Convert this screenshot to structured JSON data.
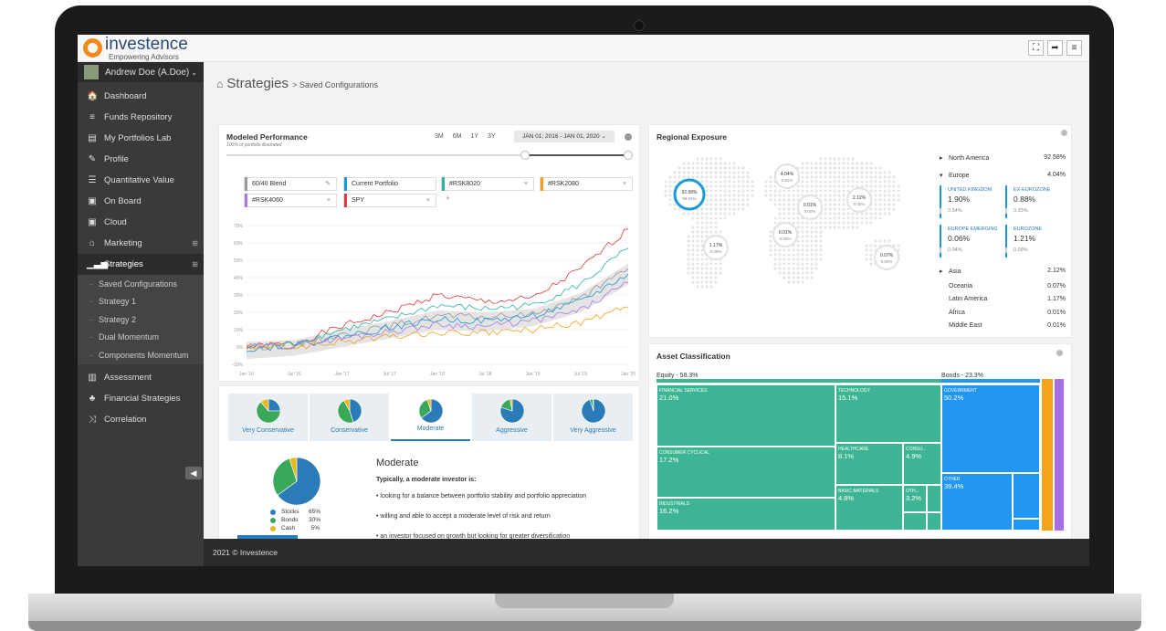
{
  "brand": {
    "name": "investence",
    "tagline": "Empowering Advisors"
  },
  "topbar": {
    "icons": [
      "fullscreen-icon",
      "logout-icon",
      "menu-icon"
    ],
    "glyphs": [
      "⛶",
      "➦",
      "≡"
    ]
  },
  "user": {
    "name": "Andrew Doe (A.Doe)"
  },
  "nav": [
    {
      "label": "Dashboard",
      "icon": "home-icon",
      "glyph": "🏠"
    },
    {
      "label": "Funds Repository",
      "icon": "database-icon",
      "glyph": "≡"
    },
    {
      "label": "My Portfolios Lab",
      "icon": "folder-icon",
      "glyph": "▤"
    },
    {
      "label": "Profile",
      "icon": "wand-icon",
      "glyph": "✎"
    },
    {
      "label": "Quantitative Value",
      "icon": "list-icon",
      "glyph": "☰"
    },
    {
      "label": "On Board",
      "icon": "briefcase-icon",
      "glyph": "▣"
    },
    {
      "label": "Cloud",
      "icon": "case-icon",
      "glyph": "▣"
    },
    {
      "label": "Marketing",
      "icon": "inbox-icon",
      "glyph": "⌂"
    },
    {
      "label": "Strategies",
      "icon": "bars-icon",
      "glyph": "▁▃▅"
    }
  ],
  "strategies_sub": [
    "Saved Configurations",
    "Strategy 1",
    "Strategy 2",
    "Dual Momentum",
    "Components Momentum"
  ],
  "nav2": [
    {
      "label": "Assessment",
      "icon": "chart-icon",
      "glyph": "▥"
    },
    {
      "label": "Financial Strategies",
      "icon": "sitemap-icon",
      "glyph": "♣"
    },
    {
      "label": "Correlation",
      "icon": "shuffle-icon",
      "glyph": "⤨"
    }
  ],
  "breadcrumb": {
    "title": "Strategies",
    "sub": "> Saved Configurations"
  },
  "performance": {
    "title": "Modeled Performance",
    "subtitle": "100% of portfolio illustrated",
    "ranges": [
      "3M",
      "6M",
      "1Y",
      "3Y"
    ],
    "date_range": "JAN 01, 2016 - JAN 01, 2020",
    "tags": [
      {
        "label": "60/40 Blend",
        "color": "#999999",
        "close": "✎"
      },
      {
        "label": "Current Portfolio",
        "color": "#1a9ad6",
        "close": ""
      },
      {
        "label": "#RSK8020",
        "color": "#2ab3a0",
        "close": "×"
      },
      {
        "label": "#RSK2080",
        "color": "#f2a01b",
        "close": "×"
      },
      {
        "label": "#RSK4060",
        "color": "#a97be0",
        "close": "×"
      },
      {
        "label": "SPY",
        "color": "#e0393e",
        "close": "×"
      }
    ],
    "add": "+"
  },
  "chart_data": {
    "type": "line",
    "x": [
      "Jan '16",
      "Jul '16",
      "Jan '17",
      "Jul '17",
      "Jan '18",
      "Jul '18",
      "Jan '19",
      "Jul '19",
      "Jan '20"
    ],
    "yticks": [
      "70%",
      "60%",
      "50%",
      "40%",
      "30%",
      "20%",
      "10%",
      "0%",
      "-10%"
    ],
    "ylim": [
      -10,
      70
    ],
    "series": [
      {
        "name": "SPY",
        "color": "#e0393e",
        "values": [
          0,
          2,
          12,
          20,
          30,
          26,
          28,
          45,
          68
        ]
      },
      {
        "name": "#RSK8020",
        "color": "#2ab3a0",
        "values": [
          0,
          2,
          10,
          16,
          24,
          22,
          24,
          36,
          57
        ]
      },
      {
        "name": "60/40 Blend",
        "color": "#999999",
        "values": [
          0,
          1,
          7,
          12,
          18,
          17,
          19,
          28,
          45
        ]
      },
      {
        "name": "Current Portfolio",
        "color": "#1a9ad6",
        "values": [
          -1,
          1,
          6,
          11,
          16,
          15,
          18,
          26,
          42
        ]
      },
      {
        "name": "#RSK4060",
        "color": "#a97be0",
        "values": [
          0,
          1,
          5,
          9,
          13,
          12,
          15,
          21,
          37
        ]
      },
      {
        "name": "#RSK2080",
        "color": "#f2a01b",
        "values": [
          0,
          0,
          3,
          6,
          8,
          8,
          10,
          14,
          23
        ]
      }
    ]
  },
  "profiles": {
    "tabs": [
      {
        "label": "Very Conservative",
        "stocks": 25
      },
      {
        "label": "Conservative",
        "stocks": 45
      },
      {
        "label": "Moderate",
        "stocks": 65
      },
      {
        "label": "Aggressive",
        "stocks": 80
      },
      {
        "label": "Very Aggressive",
        "stocks": 95
      }
    ],
    "selected": "Moderate",
    "heading": "Moderate",
    "intro": "Typically, a moderate investor is:",
    "bullets": [
      "looking for a balance between portfolio stability and portfolio appreciation",
      "willing and able to accept a moderate level of risk and return",
      "an investor focused on growth but looking for greater diversification"
    ],
    "legend": [
      {
        "label": "Stocks",
        "value": "65%",
        "color": "#2b7bb9"
      },
      {
        "label": "Bonds",
        "value": "30%",
        "color": "#3aa85a"
      },
      {
        "label": "Cash",
        "value": "5%",
        "color": "#e8b81a"
      }
    ]
  },
  "regional": {
    "title": "Regional Exposure",
    "bubbles": [
      "92.58%",
      "99.04%",
      "4.04%",
      "0.91%",
      "0.01%",
      "0.00%",
      "2.12%",
      "0.05%",
      "0.01%",
      "0.00%",
      "1.17%",
      "0.00%",
      "0.07%",
      "0.00%"
    ],
    "rows": [
      {
        "label": "North America",
        "value": "92.58%",
        "caret": "▸"
      },
      {
        "label": "Europe",
        "value": "4.04%",
        "caret": "▾"
      }
    ],
    "europe": [
      {
        "label": "UNITED KINGDOM",
        "value": "1.90%",
        "sub": "0.54%"
      },
      {
        "label": "EX-EUROZONE",
        "value": "0.88%",
        "sub": "0.33%"
      },
      {
        "label": "EUROPE EMERGING",
        "value": "0.06%",
        "sub": "0.04%"
      },
      {
        "label": "EUROZONE",
        "value": "1.21%",
        "sub": "0.09%"
      }
    ],
    "rows2": [
      {
        "label": "Asia",
        "value": "2.12%",
        "caret": "▸"
      },
      {
        "label": "Oceania",
        "value": "0.07%",
        "caret": ""
      },
      {
        "label": "Latin America",
        "value": "1.17%",
        "caret": ""
      },
      {
        "label": "Africa",
        "value": "0.01%",
        "caret": ""
      },
      {
        "label": "Middle East",
        "value": "0.01%",
        "caret": ""
      }
    ]
  },
  "assets": {
    "title": "Asset Classification",
    "equity": "Equity - 58.3%",
    "bonds": "Bonds - 23.3%",
    "cells": [
      {
        "label": "FINANCIAL SERVICES",
        "value": "21.0%"
      },
      {
        "label": "TECHNOLOGY",
        "value": "15.1%"
      },
      {
        "label": "CONSUMER CYCLICAL",
        "value": "17.2%"
      },
      {
        "label": "HEALTHCARE",
        "value": "8.1%"
      },
      {
        "label": "CONSU...",
        "value": "4.9%"
      },
      {
        "label": "INDUSTRIALS",
        "value": "16.2%"
      },
      {
        "label": "BASIC MATERIALS",
        "value": "4.8%"
      },
      {
        "label": "OTH...",
        "value": "3.2%"
      },
      {
        "label": "GOVERNMENT",
        "value": "50.2%"
      },
      {
        "label": "OTHER",
        "value": "39.4%"
      }
    ],
    "colors": {
      "equity": "#3db594",
      "bonds": "#2196f3",
      "orange": "#f5a31a",
      "purple": "#a86ee8"
    }
  },
  "footer": "2021 © Investence"
}
